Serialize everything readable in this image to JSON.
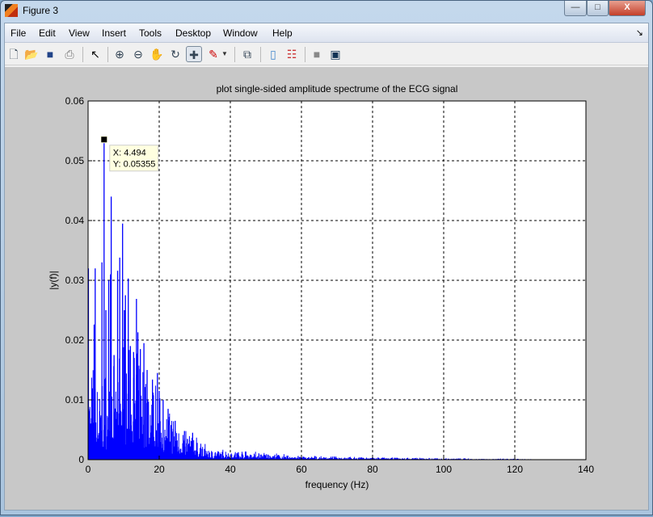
{
  "window": {
    "title": "Figure 3",
    "minimize": "—",
    "maximize": "□",
    "close": "X"
  },
  "menu": [
    {
      "label": "File"
    },
    {
      "label": "Edit"
    },
    {
      "label": "View"
    },
    {
      "label": "Insert"
    },
    {
      "label": "Tools"
    },
    {
      "label": "Desktop"
    },
    {
      "label": "Window"
    },
    {
      "label": "Help"
    }
  ],
  "toolbar": [
    "new-figure",
    "open-file",
    "save",
    "print",
    "edit-plot-arrow",
    "zoom-in",
    "zoom-out",
    "pan",
    "rotate-3d",
    "data-cursor",
    "brush",
    "link-plot",
    "insert-colorbar",
    "insert-legend",
    "hide-plot-tools",
    "show-plot-tools"
  ],
  "colors": {
    "line": "#0000ff",
    "figure_bg": "#c8c8c8",
    "datatip_bg": "#ffffe0"
  },
  "chart_data": {
    "type": "line",
    "title": "plot single-sided amplitude spectrume of the ECG signal",
    "xlabel": "frequency (Hz)",
    "ylabel": "|y(f)|",
    "xlim": [
      0,
      140
    ],
    "ylim": [
      0,
      0.06
    ],
    "xticks": [
      "0",
      "20",
      "40",
      "60",
      "80",
      "100",
      "120",
      "140"
    ],
    "yticks": [
      "0",
      "0.01",
      "0.02",
      "0.03",
      "0.04",
      "0.05",
      "0.06"
    ],
    "grid": true,
    "peaks": [
      [
        0.1,
        0.032
      ],
      [
        2.0,
        0.032
      ],
      [
        1.7,
        0.0226
      ],
      [
        3.9,
        0.033
      ],
      [
        4.494,
        0.05355
      ],
      [
        5.0,
        0.025
      ],
      [
        5.8,
        0.03
      ],
      [
        6.3,
        0.031
      ],
      [
        6.5,
        0.044
      ],
      [
        7.3,
        0.0175
      ],
      [
        8.3,
        0.0316
      ],
      [
        8.9,
        0.0338
      ],
      [
        9.7,
        0.0395
      ],
      [
        10.2,
        0.025
      ],
      [
        10.5,
        0.0275
      ],
      [
        11.3,
        0.0303
      ],
      [
        11.9,
        0.019
      ],
      [
        12.8,
        0.018
      ],
      [
        13.6,
        0.0269
      ],
      [
        14.0,
        0.0213
      ],
      [
        14.7,
        0.0185
      ],
      [
        15.7,
        0.0195
      ],
      [
        16.6,
        0.015
      ],
      [
        18.1,
        0.0134
      ],
      [
        19.5,
        0.0145
      ],
      [
        20.0,
        0.0115
      ],
      [
        21.1,
        0.01
      ],
      [
        22.5,
        0.0085
      ],
      [
        24.5,
        0.0065
      ],
      [
        27.1,
        0.0048
      ],
      [
        29.4,
        0.0045
      ]
    ],
    "envelope": [
      [
        0,
        0.012
      ],
      [
        5,
        0.011
      ],
      [
        10,
        0.016
      ],
      [
        15,
        0.013
      ],
      [
        20,
        0.009
      ],
      [
        25,
        0.005
      ],
      [
        30,
        0.003
      ],
      [
        35,
        0.0013
      ],
      [
        45,
        0.0012
      ],
      [
        50,
        0.0009
      ],
      [
        60,
        0.0005
      ],
      [
        80,
        0.0003
      ],
      [
        100,
        0.0002
      ],
      [
        125,
        0.0001
      ]
    ],
    "x_end": 125,
    "datatip": {
      "x": 4.494,
      "y": 0.05355,
      "x_label": "X: 4.494",
      "y_label": "Y: 0.05355"
    }
  }
}
